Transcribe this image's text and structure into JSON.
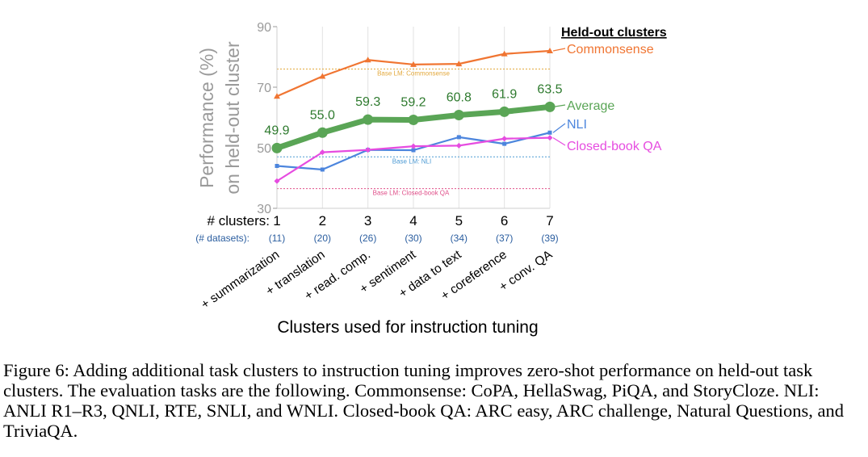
{
  "chart_data": {
    "type": "line",
    "title": "",
    "xlabel": "Clusters used for instruction tuning",
    "ylabel_lines": [
      "Performance (%)",
      "on held-out cluster"
    ],
    "ylim": [
      30,
      90
    ],
    "yticks": [
      30,
      50,
      70,
      90
    ],
    "x_header": "# clusters:",
    "x_sub_header": "(# datasets):",
    "x": [
      1,
      2,
      3,
      4,
      5,
      6,
      7
    ],
    "dataset_counts": [
      "(11)",
      "(20)",
      "(26)",
      "(30)",
      "(34)",
      "(37)",
      "(39)"
    ],
    "categories": [
      "+ summarization",
      "+ translation",
      "+ read. comp.",
      "+ sentiment",
      "+ data to text",
      "+ coreference",
      "+ conv. QA"
    ],
    "legend_title": "Held-out clusters",
    "legend_position": "right",
    "grid": "vertical",
    "series": [
      {
        "name": "Commonsense",
        "color": "#f07532",
        "values": [
          67,
          73.6,
          79,
          77.5,
          77.7,
          81,
          82
        ]
      },
      {
        "name": "Average",
        "color": "#5aa556",
        "values": [
          49.9,
          55.0,
          59.3,
          59.2,
          60.8,
          61.9,
          63.5
        ],
        "data_labels": [
          "49.9",
          "55.0",
          "59.3",
          "59.2",
          "60.8",
          "61.9",
          "63.5"
        ]
      },
      {
        "name": "NLI",
        "color": "#4c85dd",
        "values": [
          44,
          42.8,
          49.3,
          49.2,
          53.5,
          51.3,
          55
        ]
      },
      {
        "name": "Closed-book QA",
        "color": "#e64ce0",
        "values": [
          39,
          48.5,
          49.3,
          50.5,
          50.7,
          53,
          53.3
        ]
      }
    ],
    "baselines": [
      {
        "label": "Base LM: Commonsense",
        "value": 76,
        "color": "#e3a93d"
      },
      {
        "label": "Base LM: NLI",
        "value": 47,
        "color": "#4c9ad4"
      },
      {
        "label": "Base LM: Closed-book QA",
        "value": 36.5,
        "color": "#e0508a"
      }
    ]
  },
  "caption": "Figure 6: Adding additional task clusters to instruction tuning improves zero-shot performance on held-out task clusters. The evaluation tasks are the following. Commonsense: CoPA, HellaSwag, PiQA, and StoryCloze. NLI: ANLI R1–R3, QNLI, RTE, SNLI, and WNLI. Closed-book QA: ARC easy, ARC challenge, Natural Questions, and TriviaQA."
}
